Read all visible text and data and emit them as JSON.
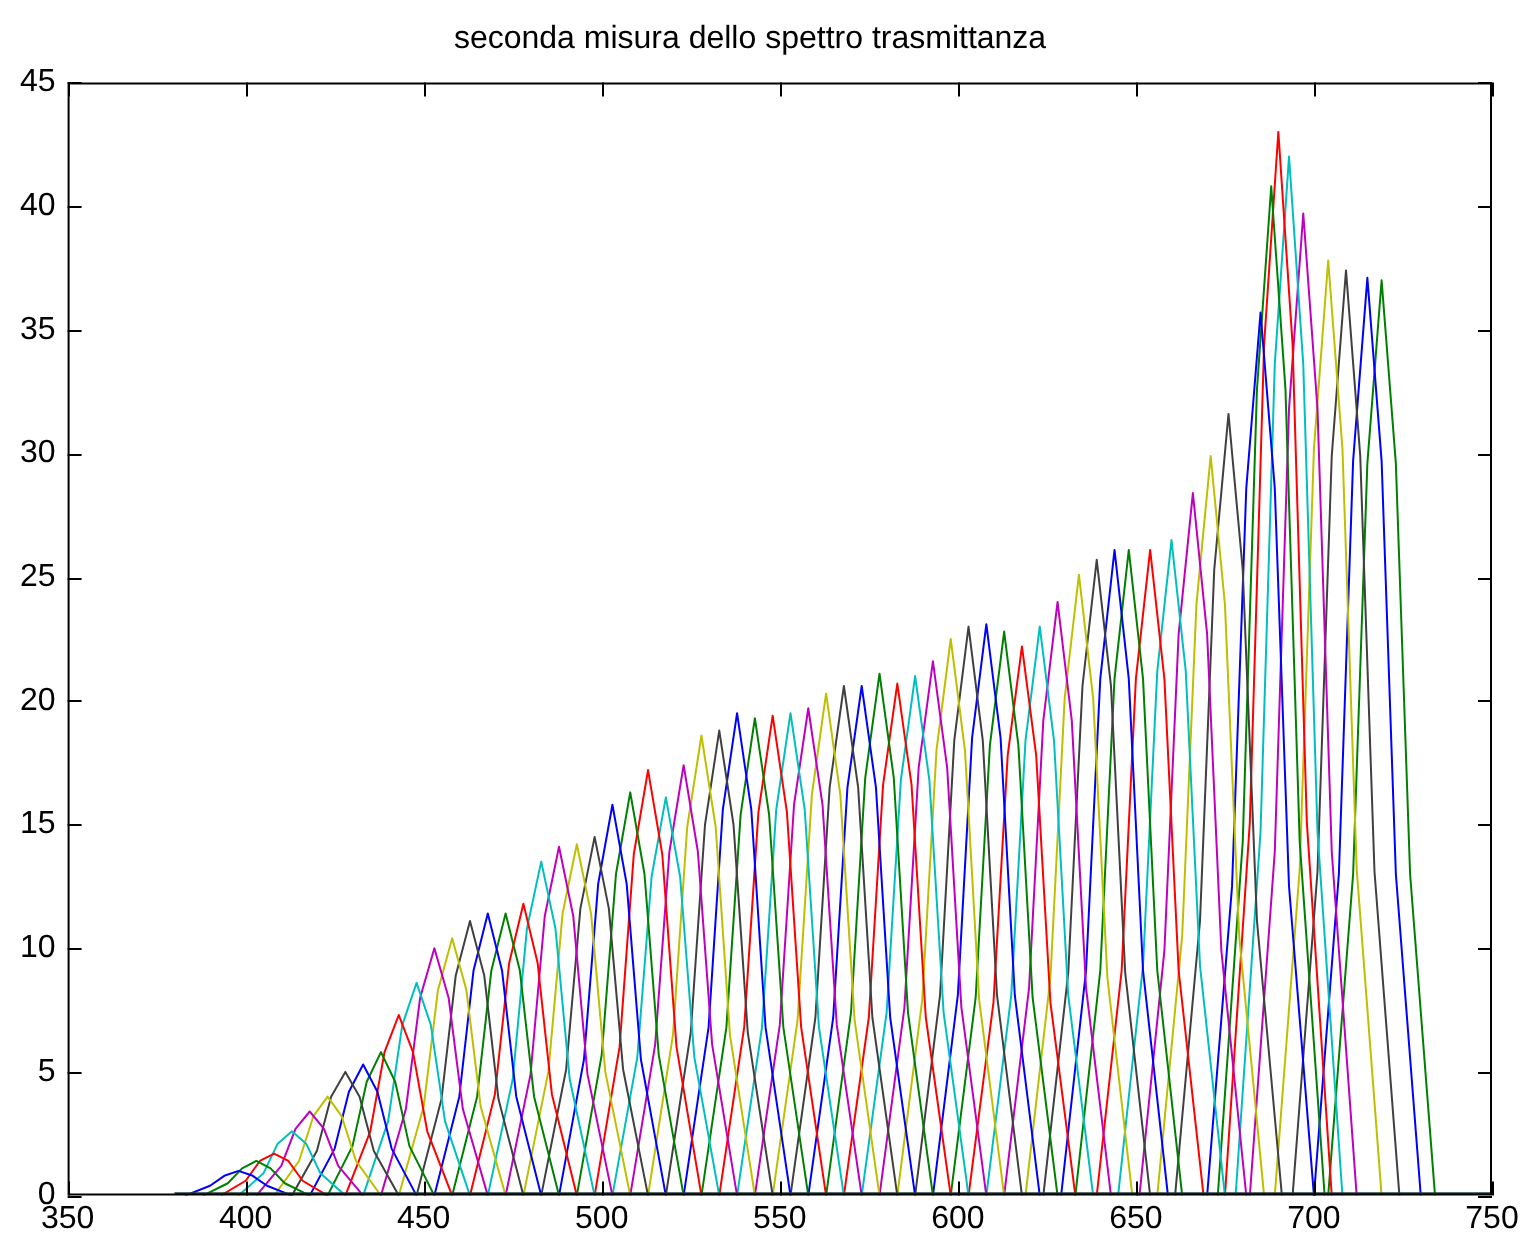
{
  "chart_data": {
    "type": "line",
    "title": "seconda misura dello spettro trasmittanza",
    "xlim": [
      350,
      750
    ],
    "xticks": [
      350,
      400,
      450,
      500,
      550,
      600,
      650,
      700,
      750
    ],
    "ylim": [
      0,
      45
    ],
    "yticks": [
      0,
      5,
      10,
      15,
      20,
      25,
      30,
      35,
      40,
      45
    ],
    "grid": false,
    "legend": false,
    "marker": "none",
    "series": [
      {
        "color": "#1f3f3f",
        "x": [
          380,
          750
        ],
        "values": [
          0.1,
          0.1
        ]
      },
      {
        "color": "#0000ff",
        "x": [
          383,
          390,
          394,
          398,
          402,
          406,
          413
        ],
        "values": [
          0,
          0.4,
          0.8,
          1.0,
          0.8,
          0.4,
          0
        ]
      },
      {
        "color": "#008000",
        "x": [
          388,
          395,
          399,
          403,
          407,
          411,
          418
        ],
        "values": [
          0,
          0.5,
          1.1,
          1.4,
          1.1,
          0.5,
          0
        ]
      },
      {
        "color": "#ff0000",
        "x": [
          393,
          400,
          404,
          408,
          412,
          416,
          423
        ],
        "values": [
          0,
          0.6,
          1.4,
          1.7,
          1.4,
          0.6,
          0
        ]
      },
      {
        "color": "#00bfbf",
        "x": [
          398,
          405,
          409,
          413,
          417,
          421,
          428
        ],
        "values": [
          0,
          0.9,
          2.1,
          2.6,
          2.1,
          0.9,
          0
        ]
      },
      {
        "color": "#bf00bf",
        "x": [
          403,
          410,
          414,
          418,
          422,
          426,
          433
        ],
        "values": [
          0,
          1.2,
          2.7,
          3.4,
          2.7,
          1.2,
          0
        ]
      },
      {
        "color": "#bfbf00",
        "x": [
          408,
          415,
          419,
          423,
          427,
          431,
          438
        ],
        "values": [
          0,
          1.4,
          3.2,
          4.0,
          3.2,
          1.4,
          0
        ]
      },
      {
        "color": "#404040",
        "x": [
          413,
          420,
          424,
          428,
          432,
          436,
          443
        ],
        "values": [
          0,
          1.8,
          4.0,
          5.0,
          4.0,
          1.8,
          0
        ]
      },
      {
        "color": "#0000ff",
        "x": [
          418,
          425,
          429,
          433,
          437,
          441,
          448
        ],
        "values": [
          0,
          1.9,
          4.2,
          5.3,
          4.2,
          1.9,
          0
        ]
      },
      {
        "color": "#008000",
        "x": [
          423,
          430,
          434,
          438,
          442,
          446,
          453
        ],
        "values": [
          0,
          2.0,
          4.6,
          5.8,
          4.6,
          2.0,
          0
        ]
      },
      {
        "color": "#ff0000",
        "x": [
          428,
          435,
          439,
          443,
          447,
          451,
          458
        ],
        "values": [
          0,
          2.6,
          5.8,
          7.3,
          5.8,
          2.6,
          0
        ]
      },
      {
        "color": "#00bfbf",
        "x": [
          433,
          440,
          444,
          448,
          452,
          456,
          463
        ],
        "values": [
          0,
          3.0,
          6.9,
          8.6,
          6.9,
          3.0,
          0
        ]
      },
      {
        "color": "#bf00bf",
        "x": [
          438,
          445,
          449,
          453,
          457,
          461,
          468
        ],
        "values": [
          0,
          3.5,
          8.0,
          10.0,
          8.0,
          3.5,
          0
        ]
      },
      {
        "color": "#bfbf00",
        "x": [
          443,
          450,
          454,
          458,
          462,
          466,
          473
        ],
        "values": [
          0,
          3.6,
          8.3,
          10.4,
          8.3,
          3.6,
          0
        ]
      },
      {
        "color": "#404040",
        "x": [
          448,
          455,
          459,
          463,
          467,
          471,
          478
        ],
        "values": [
          0,
          3.9,
          8.9,
          11.1,
          8.9,
          3.9,
          0
        ]
      },
      {
        "color": "#0000ff",
        "x": [
          453,
          460,
          464,
          468,
          472,
          476,
          483
        ],
        "values": [
          0,
          4.0,
          9.1,
          11.4,
          9.1,
          4.0,
          0
        ]
      },
      {
        "color": "#008000",
        "x": [
          458,
          465,
          469,
          473,
          477,
          481,
          488
        ],
        "values": [
          0,
          4.0,
          9.1,
          11.4,
          9.1,
          4.0,
          0
        ]
      },
      {
        "color": "#ff0000",
        "x": [
          463,
          470,
          474,
          478,
          482,
          486,
          493
        ],
        "values": [
          0,
          4.1,
          9.4,
          11.8,
          9.4,
          4.1,
          0
        ]
      },
      {
        "color": "#00bfbf",
        "x": [
          468,
          475,
          479,
          483,
          487,
          491,
          498
        ],
        "values": [
          0,
          4.7,
          10.8,
          13.5,
          10.8,
          4.7,
          0
        ]
      },
      {
        "color": "#bf00bf",
        "x": [
          473,
          480,
          484,
          488,
          492,
          496,
          503
        ],
        "values": [
          0,
          4.9,
          11.3,
          14.1,
          11.3,
          4.9,
          0
        ]
      },
      {
        "color": "#bfbf00",
        "x": [
          478,
          485,
          489,
          493,
          497,
          501,
          508
        ],
        "values": [
          0,
          5.0,
          11.4,
          14.2,
          11.4,
          5.0,
          0
        ]
      },
      {
        "color": "#404040",
        "x": [
          483,
          490,
          494,
          498,
          502,
          506,
          513
        ],
        "values": [
          0,
          5.1,
          11.6,
          14.5,
          11.6,
          5.1,
          0
        ]
      },
      {
        "color": "#0000ff",
        "x": [
          488,
          495,
          499,
          503,
          507,
          511,
          518
        ],
        "values": [
          0,
          5.5,
          12.6,
          15.8,
          12.6,
          5.5,
          0
        ]
      },
      {
        "color": "#008000",
        "x": [
          493,
          500,
          504,
          508,
          512,
          516,
          523
        ],
        "values": [
          0,
          5.7,
          13.0,
          16.3,
          13.0,
          5.7,
          0
        ]
      },
      {
        "color": "#ff0000",
        "x": [
          498,
          505,
          509,
          513,
          517,
          521,
          528
        ],
        "values": [
          0,
          6.0,
          13.8,
          17.2,
          13.8,
          6.0,
          0
        ]
      },
      {
        "color": "#00bfbf",
        "x": [
          503,
          510,
          514,
          518,
          522,
          526,
          533
        ],
        "values": [
          0,
          5.6,
          12.9,
          16.1,
          12.9,
          5.6,
          0
        ]
      },
      {
        "color": "#bf00bf",
        "x": [
          508,
          515,
          519,
          523,
          527,
          531,
          538
        ],
        "values": [
          0,
          6.1,
          13.9,
          17.4,
          13.9,
          6.1,
          0
        ]
      },
      {
        "color": "#bfbf00",
        "x": [
          513,
          520,
          524,
          528,
          532,
          536,
          543
        ],
        "values": [
          0,
          6.5,
          14.9,
          18.6,
          14.9,
          6.5,
          0
        ]
      },
      {
        "color": "#404040",
        "x": [
          518,
          525,
          529,
          533,
          537,
          541,
          548
        ],
        "values": [
          0,
          6.6,
          15.0,
          18.8,
          15.0,
          6.6,
          0
        ]
      },
      {
        "color": "#0000ff",
        "x": [
          523,
          530,
          534,
          538,
          542,
          546,
          553
        ],
        "values": [
          0,
          6.8,
          15.6,
          19.5,
          15.6,
          6.8,
          0
        ]
      },
      {
        "color": "#008000",
        "x": [
          528,
          535,
          539,
          543,
          547,
          551,
          558
        ],
        "values": [
          0,
          6.8,
          15.4,
          19.3,
          15.4,
          6.8,
          0
        ]
      },
      {
        "color": "#ff0000",
        "x": [
          533,
          540,
          544,
          548,
          552,
          556,
          563
        ],
        "values": [
          0,
          6.8,
          15.5,
          19.4,
          15.5,
          6.8,
          0
        ]
      },
      {
        "color": "#00bfbf",
        "x": [
          538,
          545,
          549,
          553,
          557,
          561,
          568
        ],
        "values": [
          0,
          6.8,
          15.6,
          19.5,
          15.6,
          6.8,
          0
        ]
      },
      {
        "color": "#bf00bf",
        "x": [
          543,
          550,
          554,
          558,
          562,
          566,
          573
        ],
        "values": [
          0,
          6.9,
          15.8,
          19.7,
          15.8,
          6.9,
          0
        ]
      },
      {
        "color": "#bfbf00",
        "x": [
          548,
          555,
          559,
          563,
          567,
          571,
          578
        ],
        "values": [
          0,
          7.1,
          16.2,
          20.3,
          16.2,
          7.1,
          0
        ]
      },
      {
        "color": "#404040",
        "x": [
          553,
          560,
          564,
          568,
          572,
          576,
          583
        ],
        "values": [
          0,
          7.2,
          16.5,
          20.6,
          16.5,
          7.2,
          0
        ]
      },
      {
        "color": "#0000ff",
        "x": [
          558,
          565,
          569,
          573,
          577,
          581,
          588
        ],
        "values": [
          0,
          7.2,
          16.5,
          20.6,
          16.5,
          7.2,
          0
        ]
      },
      {
        "color": "#008000",
        "x": [
          563,
          570,
          574,
          578,
          582,
          586,
          593
        ],
        "values": [
          0,
          7.4,
          16.9,
          21.1,
          16.9,
          7.4,
          0
        ]
      },
      {
        "color": "#ff0000",
        "x": [
          568,
          575,
          579,
          583,
          587,
          591,
          598
        ],
        "values": [
          0,
          7.2,
          16.6,
          20.7,
          16.6,
          7.2,
          0
        ]
      },
      {
        "color": "#00bfbf",
        "x": [
          573,
          580,
          584,
          588,
          592,
          596,
          603
        ],
        "values": [
          0,
          7.4,
          16.8,
          21.0,
          16.8,
          7.4,
          0
        ]
      },
      {
        "color": "#bf00bf",
        "x": [
          578,
          585,
          589,
          593,
          597,
          601,
          608
        ],
        "values": [
          0,
          7.6,
          17.3,
          21.6,
          17.3,
          7.6,
          0
        ]
      },
      {
        "color": "#bfbf00",
        "x": [
          583,
          590,
          594,
          598,
          602,
          606,
          613
        ],
        "values": [
          0,
          7.9,
          18.0,
          22.5,
          18.0,
          7.9,
          0
        ]
      },
      {
        "color": "#404040",
        "x": [
          588,
          595,
          599,
          603,
          607,
          611,
          618
        ],
        "values": [
          0,
          8.1,
          18.4,
          23.0,
          18.4,
          8.1,
          0
        ]
      },
      {
        "color": "#0000ff",
        "x": [
          593,
          600,
          604,
          608,
          612,
          616,
          623
        ],
        "values": [
          0,
          8.1,
          18.5,
          23.1,
          18.5,
          8.1,
          0
        ]
      },
      {
        "color": "#008000",
        "x": [
          598,
          605,
          609,
          613,
          617,
          621,
          628
        ],
        "values": [
          0,
          8.0,
          18.2,
          22.8,
          18.2,
          8.0,
          0
        ]
      },
      {
        "color": "#ff0000",
        "x": [
          603,
          610,
          614,
          618,
          622,
          626,
          633
        ],
        "values": [
          0,
          7.8,
          17.8,
          22.2,
          17.8,
          7.8,
          0
        ]
      },
      {
        "color": "#00bfbf",
        "x": [
          608,
          615,
          619,
          623,
          627,
          631,
          638
        ],
        "values": [
          0,
          8.1,
          18.4,
          23.0,
          18.4,
          8.1,
          0
        ]
      },
      {
        "color": "#bf00bf",
        "x": [
          613,
          620,
          624,
          628,
          632,
          636,
          643
        ],
        "values": [
          0,
          8.4,
          19.2,
          24.0,
          19.2,
          8.4,
          0
        ]
      },
      {
        "color": "#bfbf00",
        "x": [
          619,
          626,
          630,
          634,
          638,
          642,
          649
        ],
        "values": [
          0,
          8.8,
          20.1,
          25.1,
          20.1,
          8.8,
          0
        ]
      },
      {
        "color": "#404040",
        "x": [
          624,
          631,
          635,
          639,
          643,
          647,
          654
        ],
        "values": [
          0,
          9.0,
          20.6,
          25.7,
          20.6,
          9.0,
          0
        ]
      },
      {
        "color": "#0000ff",
        "x": [
          629,
          636,
          640,
          644,
          648,
          652,
          659
        ],
        "values": [
          0,
          9.1,
          20.9,
          26.1,
          20.9,
          9.1,
          0
        ]
      },
      {
        "color": "#008000",
        "x": [
          633,
          640,
          644,
          648,
          652,
          656,
          663
        ],
        "values": [
          0,
          9.1,
          20.9,
          26.1,
          20.9,
          9.1,
          0
        ]
      },
      {
        "color": "#ff0000",
        "x": [
          639,
          646,
          650,
          654,
          658,
          662,
          669
        ],
        "values": [
          0,
          9.1,
          20.9,
          26.1,
          20.9,
          9.1,
          0
        ]
      },
      {
        "color": "#00bfbf",
        "x": [
          645,
          652,
          656,
          660,
          664,
          668,
          675
        ],
        "values": [
          0,
          9.3,
          21.2,
          26.5,
          21.2,
          9.3,
          0
        ]
      },
      {
        "color": "#bf00bf",
        "x": [
          651,
          658,
          662,
          666,
          670,
          674,
          681
        ],
        "values": [
          0,
          9.9,
          22.7,
          28.4,
          22.7,
          9.9,
          0
        ]
      },
      {
        "color": "#bfbf00",
        "x": [
          656,
          663,
          667,
          671,
          675,
          679,
          686
        ],
        "values": [
          0,
          10.5,
          23.9,
          29.9,
          23.9,
          10.5,
          0
        ]
      },
      {
        "color": "#404040",
        "x": [
          661,
          668,
          672,
          676,
          680,
          684,
          691
        ],
        "values": [
          0,
          11.1,
          25.3,
          31.6,
          25.3,
          11.1,
          0
        ]
      },
      {
        "color": "#0000ff",
        "x": [
          670,
          677,
          681,
          685,
          689,
          693,
          700
        ],
        "values": [
          0,
          12.5,
          28.6,
          35.7,
          28.6,
          12.5,
          0
        ]
      },
      {
        "color": "#008000",
        "x": [
          673,
          680,
          684,
          688,
          692,
          696,
          703
        ],
        "values": [
          0,
          14.3,
          32.6,
          40.8,
          32.6,
          14.3,
          0
        ]
      },
      {
        "color": "#ff0000",
        "x": [
          675,
          682,
          686,
          690,
          694,
          698,
          705
        ],
        "values": [
          0,
          15.1,
          34.4,
          43.0,
          34.4,
          15.1,
          0
        ]
      },
      {
        "color": "#00bfbf",
        "x": [
          678,
          685,
          689,
          693,
          697,
          701,
          708
        ],
        "values": [
          0,
          14.7,
          33.6,
          42.0,
          33.6,
          14.7,
          0
        ]
      },
      {
        "color": "#bf00bf",
        "x": [
          682,
          689,
          693,
          697,
          701,
          705,
          712
        ],
        "values": [
          0,
          13.9,
          31.8,
          39.7,
          31.8,
          13.9,
          0
        ]
      },
      {
        "color": "#bfbf00",
        "x": [
          689,
          696,
          700,
          704,
          708,
          712,
          719
        ],
        "values": [
          0,
          13.2,
          30.2,
          37.8,
          30.2,
          13.2,
          0
        ]
      },
      {
        "color": "#404040",
        "x": [
          694,
          701,
          705,
          709,
          713,
          717,
          724
        ],
        "values": [
          0,
          13.1,
          29.9,
          37.4,
          29.9,
          13.1,
          0
        ]
      },
      {
        "color": "#0000ff",
        "x": [
          700,
          707,
          711,
          715,
          719,
          723,
          730
        ],
        "values": [
          0,
          13.0,
          29.7,
          37.1,
          29.7,
          13.0,
          0
        ]
      },
      {
        "color": "#008000",
        "x": [
          704,
          711,
          715,
          719,
          723,
          727,
          734
        ],
        "values": [
          0,
          13.0,
          29.6,
          37.0,
          29.6,
          13.0,
          0
        ]
      }
    ]
  }
}
